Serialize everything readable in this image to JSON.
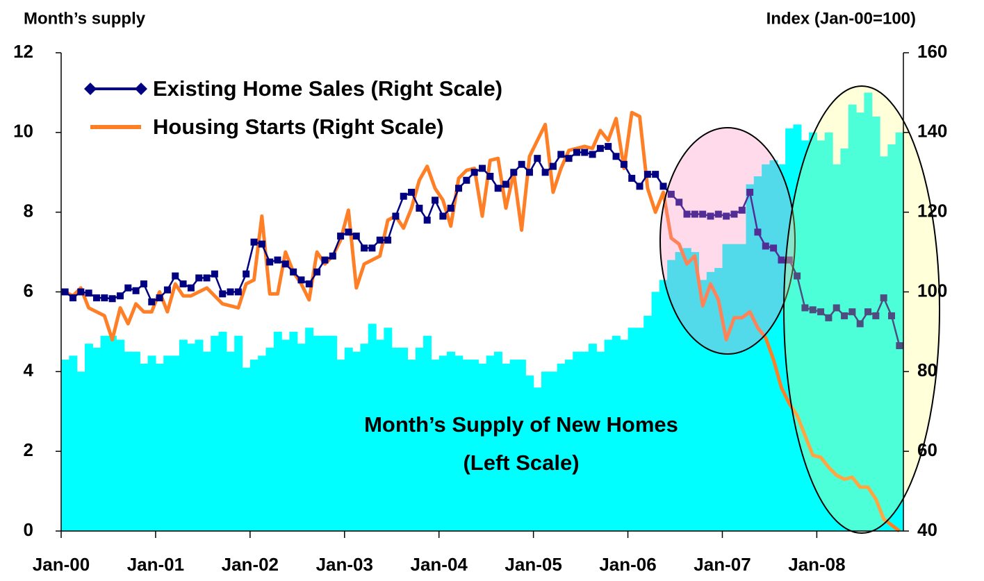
{
  "chart_data": {
    "type": "bar-line",
    "y_label": "Month’s supply",
    "y2_label": "Index (Jan-00=100)",
    "annotation": [
      "Month’s Supply of New Homes",
      "(Left Scale)"
    ],
    "categories": [
      "Jan-00",
      null,
      null,
      null,
      null,
      null,
      null,
      null,
      null,
      null,
      null,
      null,
      "Jan-01",
      null,
      null,
      null,
      null,
      null,
      null,
      null,
      null,
      null,
      null,
      null,
      "Jan-02",
      null,
      null,
      null,
      null,
      null,
      null,
      null,
      null,
      null,
      null,
      null,
      "Jan-03",
      null,
      null,
      null,
      null,
      null,
      null,
      null,
      null,
      null,
      null,
      null,
      "Jan-04",
      null,
      null,
      null,
      null,
      null,
      null,
      null,
      null,
      null,
      null,
      null,
      "Jan-05",
      null,
      null,
      null,
      null,
      null,
      null,
      null,
      null,
      null,
      null,
      null,
      "Jan-06",
      null,
      null,
      null,
      null,
      null,
      null,
      null,
      null,
      null,
      null,
      null,
      "Jan-07",
      null,
      null,
      null,
      null,
      null,
      null,
      null,
      null,
      null,
      null,
      null,
      "Jan-08",
      null,
      null,
      null,
      null,
      null,
      null,
      null,
      null,
      null,
      null
    ],
    "bars": {
      "color": "#00ffff",
      "axis": "y",
      "values": [
        4.3,
        4.4,
        4.0,
        4.7,
        4.6,
        4.9,
        4.9,
        4.8,
        4.5,
        4.5,
        4.2,
        4.4,
        4.2,
        4.4,
        4.4,
        4.8,
        4.7,
        4.8,
        4.5,
        4.9,
        5.0,
        4.5,
        4.9,
        4.1,
        4.3,
        4.4,
        4.6,
        5.0,
        4.8,
        5.0,
        4.7,
        5.1,
        4.9,
        4.9,
        4.9,
        4.3,
        4.6,
        4.5,
        4.7,
        5.2,
        4.8,
        5.1,
        4.6,
        4.6,
        4.3,
        4.6,
        4.9,
        4.3,
        4.4,
        4.5,
        4.4,
        4.3,
        4.3,
        4.2,
        4.4,
        4.5,
        4.2,
        4.3,
        4.3,
        3.9,
        3.6,
        4.0,
        4.0,
        4.2,
        4.3,
        4.5,
        4.5,
        4.7,
        4.5,
        4.8,
        4.9,
        4.8,
        5.1,
        5.1,
        5.4,
        6.0,
        6.3,
        6.8,
        7.0,
        7.1,
        7.0,
        6.3,
        6.5,
        6.6,
        7.2,
        7.2,
        7.2,
        8.7,
        8.9,
        9.2,
        9.3,
        9.2,
        10.1,
        10.2,
        9.8,
        10.0,
        9.8,
        10.0,
        9.2,
        9.6,
        10.7,
        10.5,
        11.0,
        10.4,
        9.4,
        9.7,
        10.0
      ]
    },
    "series": [
      {
        "name": "Existing Home Sales (Right Scale)",
        "color": "#000080",
        "axis": "y2",
        "marker": "square",
        "values": [
          100,
          98.5,
          100,
          99.7,
          98.5,
          98.5,
          98.3,
          99,
          101,
          100.3,
          102,
          97.5,
          98.5,
          100.5,
          104,
          102,
          101,
          103.5,
          103.5,
          104.5,
          99.5,
          100,
          100,
          104.5,
          112.5,
          112,
          107.5,
          108,
          107,
          105,
          103,
          102,
          105,
          108,
          109,
          114,
          115,
          114,
          111,
          111,
          113,
          113,
          119,
          124,
          125,
          121,
          118,
          123,
          119,
          121,
          126,
          128,
          130,
          131,
          129,
          126,
          127,
          130,
          132,
          130,
          133.5,
          130,
          131.5,
          134.5,
          133.5,
          135,
          135,
          134.5,
          136,
          136.5,
          134,
          132,
          128.5,
          126.5,
          129.5,
          129.5,
          126.5,
          124.5,
          122.5,
          119.5,
          119.5,
          119.5,
          119,
          119.5,
          119,
          119.5,
          120.5,
          125,
          115,
          111.5,
          111,
          108,
          108,
          104,
          96,
          95.5,
          95,
          93.5,
          96,
          94,
          95,
          92,
          95,
          94,
          98.5,
          94,
          86.5
        ]
      },
      {
        "name": "Housing Starts (Right Scale)",
        "color": "#ff7f27",
        "axis": "y2",
        "values": [
          100,
          99,
          101,
          96,
          95,
          94,
          88,
          96,
          92,
          97,
          95,
          95,
          100,
          95,
          102,
          99,
          99,
          100,
          101,
          99,
          97,
          96.5,
          96,
          102,
          103,
          119,
          99.5,
          99.5,
          110,
          105,
          102,
          98,
          110,
          107,
          109,
          113,
          120.5,
          101,
          107,
          108,
          109,
          118,
          119,
          116,
          121,
          128,
          131.5,
          126,
          123,
          116.5,
          128.5,
          130.5,
          131,
          119,
          133,
          133.5,
          121,
          130,
          115.5,
          134,
          138,
          142,
          125,
          131,
          135.5,
          136,
          136.5,
          136,
          140.5,
          138,
          143.5,
          131,
          145,
          144,
          126,
          120,
          125,
          113.5,
          112,
          107,
          109,
          96.5,
          102,
          98,
          88,
          93.5,
          93.5,
          95,
          91,
          88.5,
          83,
          76,
          72,
          69,
          64,
          59,
          58.5,
          56,
          54,
          53,
          53.5,
          51,
          51,
          48,
          43,
          41.5,
          40
        ]
      }
    ],
    "ylim": [
      0,
      12
    ],
    "yticks": [
      0,
      2,
      4,
      6,
      8,
      10,
      12
    ],
    "y2lim": [
      40,
      160
    ],
    "y2ticks": [
      40,
      60,
      80,
      100,
      120,
      140,
      160
    ],
    "grid": false
  }
}
